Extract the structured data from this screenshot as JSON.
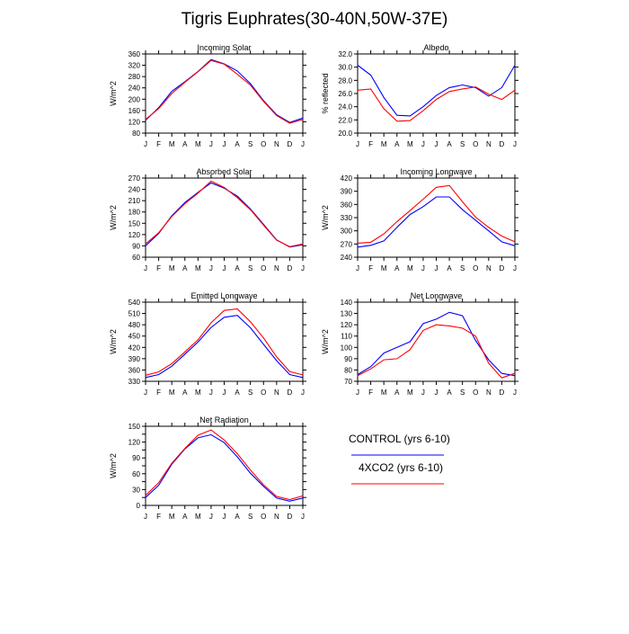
{
  "title": "Tigris Euphrates(30-40N,50W-37E)",
  "legend": {
    "control_label": "CONTROL (yrs 6-10)",
    "x4_label": "4XCO2 (yrs 6-10)",
    "control_color": "#0000ff",
    "x4_color": "#ff0000"
  },
  "chart_data": [
    {
      "type": "line",
      "title": "Incoming Solar",
      "ylabel": "W/m^2",
      "categories": [
        "J",
        "F",
        "M",
        "A",
        "M",
        "J",
        "J",
        "A",
        "S",
        "O",
        "N",
        "D",
        "J"
      ],
      "ylim": [
        80,
        360
      ],
      "yticks": [
        80,
        120,
        160,
        200,
        240,
        280,
        320,
        360
      ],
      "yticklabels": [
        "80",
        "120",
        "160",
        "200",
        "240",
        "280",
        "320",
        "360"
      ],
      "series": [
        {
          "name": "CONTROL (yrs 6-10)",
          "color": "#0000ff",
          "values": [
            125,
            170,
            228,
            262,
            298,
            340,
            325,
            300,
            255,
            195,
            145,
            118,
            133
          ]
        },
        {
          "name": "4XCO2 (yrs 6-10)",
          "color": "#ff0000",
          "values": [
            128,
            167,
            220,
            260,
            297,
            337,
            324,
            288,
            250,
            192,
            142,
            115,
            128
          ]
        }
      ]
    },
    {
      "type": "line",
      "title": "Albedo",
      "ylabel": "% reflected",
      "categories": [
        "J",
        "F",
        "M",
        "A",
        "M",
        "J",
        "J",
        "A",
        "S",
        "O",
        "N",
        "D",
        "J"
      ],
      "ylim": [
        20,
        32
      ],
      "yticks": [
        20,
        22,
        24,
        26,
        28,
        30,
        32
      ],
      "yticklabels": [
        "20.0",
        "22.0",
        "24.0",
        "26.0",
        "28.0",
        "30.0",
        "32.0"
      ],
      "series": [
        {
          "name": "CONTROL (yrs 6-10)",
          "color": "#0000ff",
          "values": [
            30.3,
            28.8,
            25.4,
            22.7,
            22.6,
            24.0,
            25.7,
            26.9,
            27.3,
            26.9,
            25.6,
            26.9,
            30.3
          ]
        },
        {
          "name": "4XCO2 (yrs 6-10)",
          "color": "#ff0000",
          "values": [
            26.5,
            26.7,
            23.7,
            21.8,
            21.9,
            23.4,
            25.1,
            26.3,
            26.7,
            27.0,
            25.9,
            25.1,
            26.5
          ]
        }
      ]
    },
    {
      "type": "line",
      "title": "Absorbed Solar",
      "ylabel": "W/m^2",
      "categories": [
        "J",
        "F",
        "M",
        "A",
        "M",
        "J",
        "J",
        "A",
        "S",
        "O",
        "N",
        "D",
        "J"
      ],
      "ylim": [
        60,
        270
      ],
      "yticks": [
        60,
        90,
        120,
        150,
        180,
        210,
        240,
        270
      ],
      "yticklabels": [
        "60",
        "90",
        "120",
        "150",
        "180",
        "210",
        "240",
        "270"
      ],
      "series": [
        {
          "name": "CONTROL (yrs 6-10)",
          "color": "#0000ff",
          "values": [
            90,
            123,
            170,
            205,
            232,
            257,
            243,
            222,
            188,
            147,
            106,
            87,
            93
          ]
        },
        {
          "name": "4XCO2 (yrs 6-10)",
          "color": "#ff0000",
          "values": [
            95,
            125,
            168,
            202,
            230,
            262,
            245,
            218,
            186,
            145,
            105,
            88,
            95
          ]
        }
      ]
    },
    {
      "type": "line",
      "title": "Incoming Longwave",
      "ylabel": "W/m^2",
      "categories": [
        "J",
        "F",
        "M",
        "A",
        "M",
        "J",
        "J",
        "A",
        "S",
        "O",
        "N",
        "D",
        "J"
      ],
      "ylim": [
        240,
        420
      ],
      "yticks": [
        240,
        270,
        300,
        330,
        360,
        390,
        420
      ],
      "yticklabels": [
        "240",
        "270",
        "300",
        "330",
        "360",
        "390",
        "420"
      ],
      "series": [
        {
          "name": "CONTROL (yrs 6-10)",
          "color": "#0000ff",
          "values": [
            263,
            267,
            277,
            308,
            337,
            355,
            377,
            377,
            348,
            324,
            300,
            275,
            266
          ]
        },
        {
          "name": "4XCO2 (yrs 6-10)",
          "color": "#ff0000",
          "values": [
            272,
            274,
            293,
            321,
            346,
            372,
            399,
            403,
            366,
            331,
            308,
            288,
            275
          ]
        }
      ]
    },
    {
      "type": "line",
      "title": "Emitted Longwave",
      "ylabel": "W/m^2",
      "categories": [
        "J",
        "F",
        "M",
        "A",
        "M",
        "J",
        "J",
        "A",
        "S",
        "O",
        "N",
        "D",
        "J"
      ],
      "ylim": [
        330,
        540
      ],
      "yticks": [
        330,
        360,
        390,
        420,
        450,
        480,
        510,
        540
      ],
      "yticklabels": [
        "330",
        "360",
        "390",
        "420",
        "450",
        "480",
        "510",
        "540"
      ],
      "series": [
        {
          "name": "CONTROL (yrs 6-10)",
          "color": "#0000ff",
          "values": [
            340,
            348,
            370,
            402,
            434,
            473,
            500,
            505,
            472,
            428,
            385,
            348,
            340
          ]
        },
        {
          "name": "4XCO2 (yrs 6-10)",
          "color": "#ff0000",
          "values": [
            346,
            355,
            377,
            408,
            440,
            485,
            518,
            522,
            488,
            445,
            395,
            356,
            347
          ]
        }
      ]
    },
    {
      "type": "line",
      "title": "Net Longwave",
      "ylabel": "W/m^2",
      "categories": [
        "J",
        "F",
        "M",
        "A",
        "M",
        "J",
        "J",
        "A",
        "S",
        "O",
        "N",
        "D",
        "J"
      ],
      "ylim": [
        70,
        140
      ],
      "yticks": [
        70,
        80,
        90,
        100,
        110,
        120,
        130,
        140
      ],
      "yticklabels": [
        "70",
        "80",
        "90",
        "100",
        "110",
        "120",
        "130",
        "140"
      ],
      "series": [
        {
          "name": "CONTROL (yrs 6-10)",
          "color": "#0000ff",
          "values": [
            76,
            83,
            95,
            100,
            105,
            121,
            125,
            131,
            128,
            106,
            89,
            77,
            75
          ]
        },
        {
          "name": "4XCO2 (yrs 6-10)",
          "color": "#ff0000",
          "values": [
            75,
            81,
            89,
            90,
            98,
            115,
            120,
            119,
            117,
            110,
            86,
            73,
            77
          ]
        }
      ]
    },
    {
      "type": "line",
      "title": "Net Radiation",
      "ylabel": "W/m^2",
      "categories": [
        "J",
        "F",
        "M",
        "A",
        "M",
        "J",
        "J",
        "A",
        "S",
        "O",
        "N",
        "D",
        "J"
      ],
      "ylim": [
        0,
        150
      ],
      "yticks": [
        0,
        15,
        30,
        45,
        60,
        75,
        90,
        105,
        120,
        135,
        150
      ],
      "yticklabels": [
        "0",
        "",
        "30",
        "",
        "60",
        "",
        "90",
        "",
        "120",
        "",
        "150"
      ],
      "series": [
        {
          "name": "CONTROL (yrs 6-10)",
          "color": "#0000ff",
          "values": [
            15,
            38,
            78,
            107,
            128,
            134,
            119,
            92,
            61,
            36,
            14,
            8,
            14
          ]
        },
        {
          "name": "4XCO2 (yrs 6-10)",
          "color": "#ff0000",
          "values": [
            19,
            43,
            80,
            108,
            133,
            143,
            124,
            98,
            67,
            39,
            17,
            11,
            18
          ]
        }
      ]
    }
  ]
}
